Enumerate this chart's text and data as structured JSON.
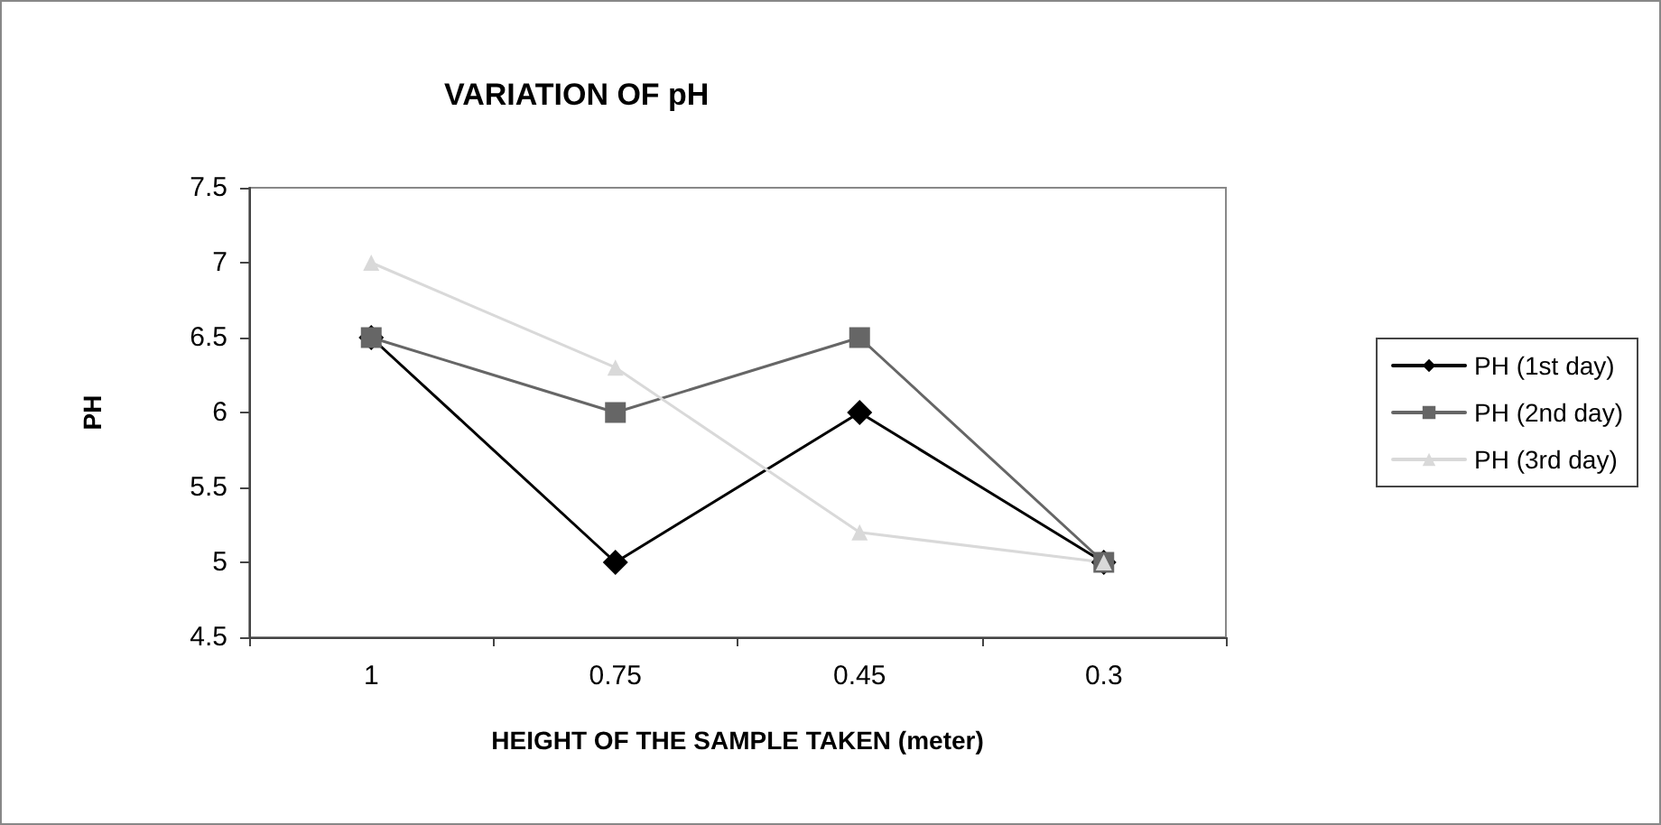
{
  "chart_data": {
    "type": "line",
    "title": "VARIATION OF pH",
    "xlabel": "HEIGHT OF THE SAMPLE TAKEN (meter)",
    "ylabel": "PH",
    "categories": [
      "1",
      "0.75",
      "0.45",
      "0.3"
    ],
    "series": [
      {
        "name": "PH (1st day)",
        "color": "#000000",
        "marker": "diamond",
        "values": [
          6.5,
          5,
          6,
          5
        ]
      },
      {
        "name": "PH (2nd day)",
        "color": "#666666",
        "marker": "square",
        "values": [
          6.5,
          6,
          6.5,
          5
        ]
      },
      {
        "name": "PH (3rd day)",
        "color": "#d9d9d9",
        "marker": "triangle",
        "values": [
          7,
          6.3,
          5.2,
          5
        ]
      }
    ],
    "ylim": [
      4.5,
      7.5
    ],
    "yticks": [
      4.5,
      5,
      5.5,
      6,
      6.5,
      7,
      7.5
    ],
    "grid": false,
    "legend": "right"
  }
}
